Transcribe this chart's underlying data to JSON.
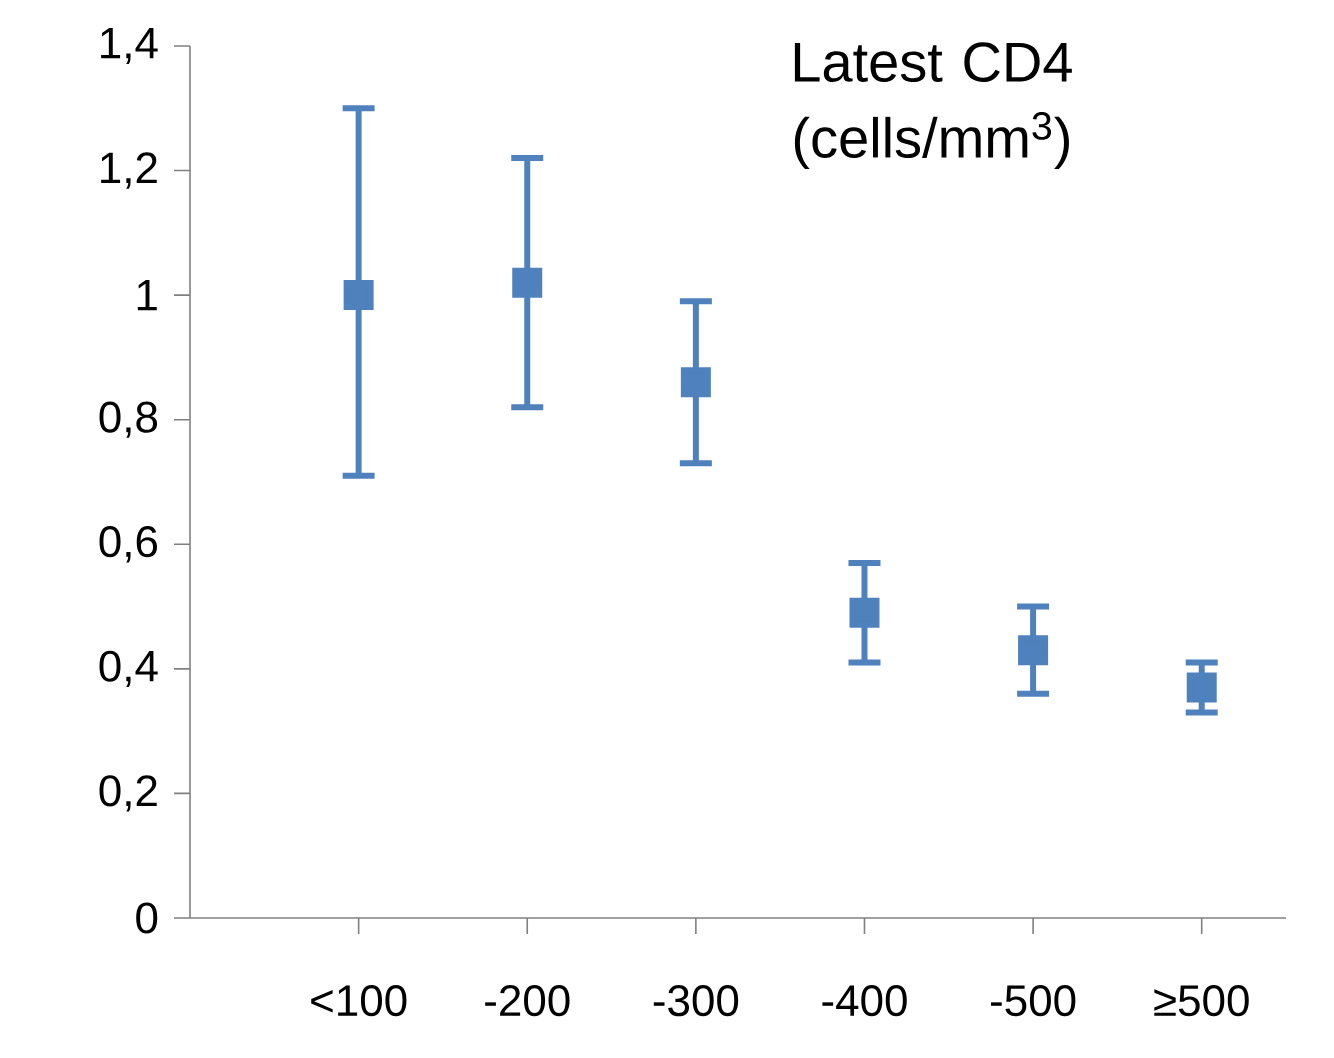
{
  "chart_data": {
    "type": "scatter",
    "title": "Latest CD4 (cells/mm$^{3}$)",
    "categories": [
      "<100",
      "-200",
      "-300",
      "-400",
      "-500",
      "≥500"
    ],
    "series": [
      {
        "color": "#4f81bd",
        "values": [
          1.0,
          1.02,
          0.86,
          0.49,
          0.43,
          0.37
        ],
        "errors": [
          [
            0.71,
            1.3
          ],
          [
            0.82,
            1.22
          ],
          [
            0.73,
            0.99
          ],
          [
            0.41,
            0.57
          ],
          [
            0.36,
            0.5
          ],
          [
            0.33,
            0.41
          ]
        ]
      }
    ],
    "ylim": [
      0,
      1.4
    ],
    "yticks": [
      0,
      {
        "value": 0.2,
        "label": "0,2"
      },
      {
        "value": 0.4,
        "label": "0,4"
      },
      {
        "value": 0.6,
        "label": "0,6"
      },
      {
        "value": 0.8,
        "label": "0,8"
      },
      1,
      {
        "value": 1.2,
        "label": "1,2"
      },
      {
        "value": 1.4,
        "label": "1,4"
      }
    ],
    "marker": "square",
    "grid": false
  }
}
